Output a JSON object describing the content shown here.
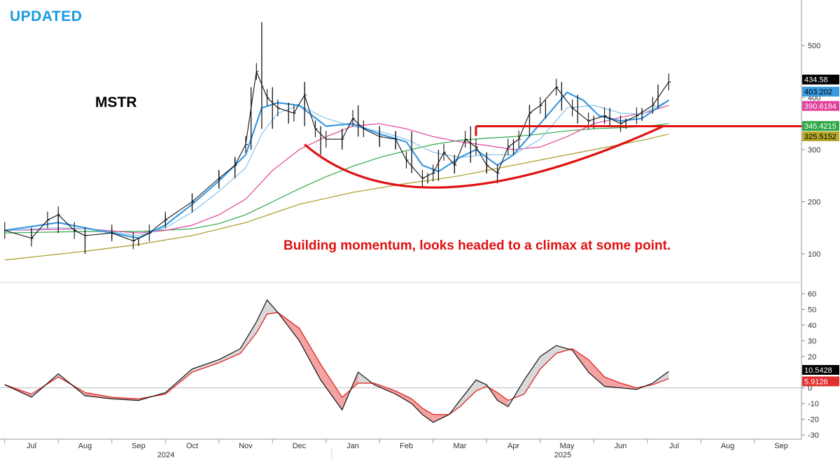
{
  "header": {
    "label": "UPDATED",
    "ticker": "MSTR",
    "annotation": "Building momentum, looks headed to a climax at some point."
  },
  "colors": {
    "price": "#111111",
    "ema_fast": "#3b9ae0",
    "ema_slow": "#8ec8ef",
    "sma_pink": "#e0409a",
    "sma_green": "#2fa84a",
    "sma_olive": "#a89a20",
    "drawing": "#e01010",
    "macd": "#111111",
    "signal": "#e03030"
  },
  "chart_data": [
    {
      "type": "line",
      "subtype": "ohlc-with-moving-averages",
      "title": "",
      "ylim": [
        60,
        560
      ],
      "yticks": [
        100,
        200,
        300,
        400,
        500
      ],
      "x_month_labels": [
        "Jul",
        "Aug",
        "Sep",
        "Oct",
        "Nov",
        "Dec",
        "Jan",
        "Feb",
        "Mar",
        "Apr",
        "May",
        "Jun",
        "Jul",
        "Aug",
        "Sep"
      ],
      "x_year_labels": [
        "2024",
        "2025"
      ],
      "months_index": [
        0,
        1,
        2,
        3,
        4,
        5,
        6,
        7,
        8,
        9,
        10,
        11,
        12,
        13,
        14
      ],
      "price_x": [
        -0.5,
        0.0,
        0.3,
        0.5,
        0.8,
        1.0,
        1.5,
        1.9,
        2.2,
        2.5,
        3.0,
        3.5,
        3.8,
        4.0,
        4.2,
        4.4,
        4.6,
        4.9,
        5.1,
        5.3,
        5.5,
        5.8,
        6.0,
        6.2,
        6.5,
        6.8,
        7.0,
        7.3,
        7.5,
        7.7,
        7.9,
        8.1,
        8.3,
        8.5,
        8.7,
        8.9,
        9.1,
        9.3,
        9.5,
        9.8,
        10.1,
        10.4,
        10.7,
        11.0,
        11.3,
        11.6,
        11.9
      ],
      "price_y": [
        145,
        130,
        165,
        175,
        145,
        135,
        140,
        125,
        140,
        165,
        200,
        245,
        270,
        310,
        450,
        400,
        380,
        370,
        405,
        340,
        320,
        320,
        360,
        340,
        325,
        320,
        280,
        245,
        255,
        295,
        270,
        320,
        305,
        270,
        255,
        305,
        320,
        370,
        385,
        420,
        380,
        355,
        365,
        350,
        365,
        385,
        430
      ],
      "candles": {
        "x": [
          0.0,
          0.5,
          1.0,
          1.5,
          2.0,
          2.5,
          3.0,
          3.5,
          3.8,
          4.1,
          4.3,
          4.5,
          4.8,
          5.1,
          5.4,
          5.8,
          6.1,
          6.5,
          6.8,
          7.1,
          7.4,
          7.6,
          7.9,
          8.2,
          8.5,
          8.7,
          9.0,
          9.3,
          9.6,
          9.9,
          10.2,
          10.5,
          10.8,
          11.1,
          11.4,
          11.7
        ],
        "high": [
          150,
          180,
          145,
          150,
          130,
          175,
          215,
          260,
          285,
          420,
          545,
          420,
          390,
          430,
          345,
          340,
          385,
          345,
          335,
          335,
          255,
          300,
          290,
          345,
          295,
          260,
          320,
          385,
          395,
          430,
          405,
          365,
          380,
          360,
          380,
          425
        ],
        "low": [
          125,
          140,
          100,
          128,
          115,
          155,
          180,
          225,
          245,
          300,
          340,
          340,
          350,
          345,
          290,
          300,
          325,
          305,
          300,
          255,
          235,
          240,
          255,
          275,
          255,
          235,
          290,
          325,
          360,
          375,
          350,
          340,
          345,
          340,
          355,
          380
        ]
      },
      "series": [
        {
          "role": "ema_fast",
          "x": [
            -0.5,
            0.5,
            1.0,
            1.5,
            2.0,
            2.5,
            3.0,
            3.5,
            4.0,
            4.3,
            4.6,
            5.0,
            5.5,
            6.0,
            6.5,
            7.0,
            7.3,
            7.6,
            8.0,
            8.3,
            8.7,
            9.0,
            9.5,
            10.0,
            10.3,
            10.6,
            11.0,
            11.4,
            11.9
          ],
          "values": [
            145,
            160,
            150,
            140,
            130,
            155,
            195,
            240,
            290,
            380,
            390,
            385,
            345,
            350,
            330,
            315,
            270,
            258,
            285,
            300,
            270,
            290,
            350,
            410,
            395,
            365,
            355,
            360,
            395
          ]
        },
        {
          "role": "ema_slow",
          "x": [
            -0.5,
            0.5,
            1.0,
            1.5,
            2.0,
            2.5,
            3.0,
            3.5,
            4.0,
            4.3,
            4.6,
            5.0,
            5.5,
            6.0,
            6.5,
            7.0,
            7.5,
            8.0,
            8.5,
            9.0,
            9.5,
            10.0,
            10.5,
            11.0,
            11.4,
            11.9
          ],
          "values": [
            145,
            150,
            148,
            142,
            135,
            150,
            180,
            220,
            265,
            330,
            370,
            385,
            360,
            345,
            335,
            320,
            295,
            285,
            290,
            290,
            320,
            380,
            385,
            370,
            368,
            395
          ]
        },
        {
          "role": "sma_pink",
          "x": [
            -0.5,
            1.0,
            2.0,
            2.5,
            3.0,
            3.5,
            4.0,
            4.5,
            5.0,
            5.5,
            6.0,
            6.5,
            7.0,
            7.5,
            8.0,
            8.5,
            9.0,
            9.5,
            10.0,
            10.5,
            11.0,
            11.5,
            11.9
          ],
          "values": [
            145,
            148,
            140,
            145,
            155,
            175,
            205,
            260,
            300,
            325,
            345,
            350,
            340,
            325,
            315,
            308,
            300,
            305,
            325,
            350,
            362,
            372,
            385
          ]
        },
        {
          "role": "sma_green",
          "x": [
            -0.5,
            1.0,
            2.0,
            3.0,
            3.5,
            4.0,
            4.5,
            5.0,
            5.5,
            6.0,
            6.5,
            7.0,
            7.5,
            8.0,
            8.5,
            9.0,
            9.5,
            10.0,
            10.5,
            11.0,
            11.5,
            11.9
          ],
          "values": [
            140,
            143,
            143,
            148,
            158,
            175,
            200,
            225,
            248,
            268,
            285,
            298,
            310,
            318,
            322,
            325,
            330,
            336,
            340,
            342,
            345,
            350
          ]
        },
        {
          "role": "sma_olive",
          "x": [
            -0.5,
            1.0,
            2.0,
            3.0,
            4.0,
            5.0,
            6.0,
            7.0,
            7.5,
            8.0,
            8.5,
            9.0,
            9.5,
            10.0,
            10.5,
            11.0,
            11.5,
            11.9
          ],
          "values": [
            88,
            105,
            118,
            135,
            160,
            195,
            218,
            235,
            242,
            250,
            260,
            270,
            280,
            290,
            300,
            310,
            320,
            330
          ]
        }
      ],
      "last_values": [
        "434.58",
        "403.202",
        "390.6184",
        "345.4215",
        "325.5152"
      ],
      "support_line": {
        "x": [
          8.3,
          14.4
        ],
        "y": 345
      },
      "arc": {
        "x": [
          5.1,
          7.8,
          11.8
        ],
        "y": [
          310,
          228,
          345
        ]
      }
    },
    {
      "type": "line",
      "subtype": "macd",
      "title": "",
      "ylim": [
        -34,
        65
      ],
      "yticks": [
        -30,
        -20,
        -10,
        0,
        10,
        20,
        30,
        40,
        50,
        60
      ],
      "series": [
        {
          "role": "macd",
          "x": [
            -0.5,
            0.0,
            0.5,
            1.0,
            1.5,
            2.0,
            2.5,
            3.0,
            3.5,
            3.9,
            4.2,
            4.4,
            4.6,
            5.0,
            5.4,
            5.8,
            6.1,
            6.4,
            6.8,
            7.1,
            7.3,
            7.5,
            7.8,
            8.0,
            8.3,
            8.5,
            8.7,
            8.9,
            9.2,
            9.5,
            9.8,
            10.1,
            10.4,
            10.7,
            11.0,
            11.3,
            11.6,
            11.9
          ],
          "values": [
            2,
            -6,
            9,
            -5,
            -7,
            -8,
            -3,
            12,
            18,
            25,
            42,
            56,
            48,
            30,
            5,
            -14,
            10,
            2,
            -4,
            -10,
            -17,
            -22,
            -17,
            -8,
            5,
            2,
            -8,
            -12,
            5,
            20,
            27,
            24,
            10,
            1,
            0,
            -1,
            3,
            10.5
          ]
        },
        {
          "role": "signal",
          "x": [
            -0.5,
            0.0,
            0.5,
            1.0,
            1.5,
            2.0,
            2.5,
            3.0,
            3.5,
            3.9,
            4.2,
            4.4,
            4.6,
            5.0,
            5.4,
            5.8,
            6.1,
            6.4,
            6.8,
            7.1,
            7.3,
            7.5,
            7.8,
            8.0,
            8.3,
            8.5,
            8.7,
            8.9,
            9.2,
            9.5,
            9.8,
            10.1,
            10.4,
            10.7,
            11.0,
            11.3,
            11.6,
            11.9
          ],
          "values": [
            2,
            -4,
            7,
            -3,
            -6,
            -7,
            -4,
            10,
            16,
            22,
            35,
            47,
            48,
            38,
            15,
            -6,
            3,
            3,
            -2,
            -7,
            -13,
            -17,
            -17,
            -12,
            -2,
            1,
            -3,
            -8,
            -4,
            12,
            22,
            25,
            18,
            7,
            3,
            0,
            2,
            5.9
          ]
        }
      ],
      "last_values": [
        "10.5428",
        "5.9126"
      ]
    }
  ]
}
